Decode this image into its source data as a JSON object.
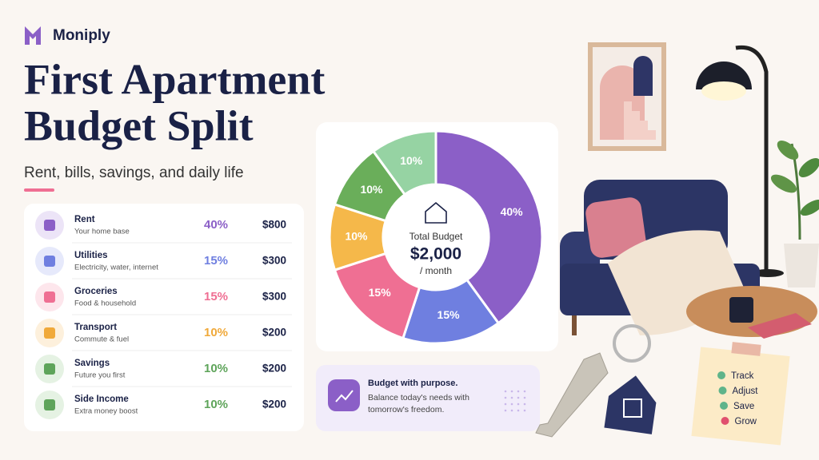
{
  "brand": "Moniply",
  "header": {
    "title_lines": [
      "First Apartment",
      "Budget Split"
    ],
    "subtitle": "Rent, bills, savings, and daily life"
  },
  "budget_items": [
    {
      "name": "Rent",
      "description": "Your home base",
      "percent": "40%",
      "amount": "$800",
      "color": "#8b5fc7",
      "bg": "#ece4f7"
    },
    {
      "name": "Utilities",
      "description": "Electricity, water, internet",
      "percent": "15%",
      "amount": "$300",
      "color": "#6f7fe0",
      "bg": "#e6e9fb"
    },
    {
      "name": "Groceries",
      "description": "Food & household",
      "percent": "15%",
      "amount": "$300",
      "color": "#ef6f93",
      "bg": "#fde6ec"
    },
    {
      "name": "Transport",
      "description": "Commute & fuel",
      "percent": "10%",
      "amount": "$200",
      "color": "#f0a93a",
      "bg": "#fdf0dc"
    },
    {
      "name": "Savings",
      "description": "Future you first",
      "percent": "10%",
      "amount": "$200",
      "color": "#5ea45a",
      "bg": "#e5f2e3"
    },
    {
      "name": "Side Income",
      "description": "Extra money boost",
      "percent": "10%",
      "amount": "$200",
      "color": "#5ea45a",
      "bg": "#e5f2e3"
    }
  ],
  "chart_data": {
    "type": "pie",
    "values": [
      40,
      15,
      15,
      10,
      10,
      10
    ],
    "value_labels": [
      "40%",
      "15%",
      "15%",
      "10%",
      "10%",
      "10%"
    ],
    "colors": [
      "#8b5fc7",
      "#6f7fe0",
      "#ef6f93",
      "#f5b84a",
      "#6aae5a",
      "#96d3a3"
    ],
    "center_label": "Total Budget",
    "center_value": "$2,000",
    "center_unit": "/ month"
  },
  "callout": {
    "title": "Budget with purpose.",
    "lines": [
      "Balance today's needs with",
      "tomorrow's freedom."
    ]
  },
  "sticky_note": [
    "Track",
    "Adjust",
    "Save",
    "Grow"
  ]
}
